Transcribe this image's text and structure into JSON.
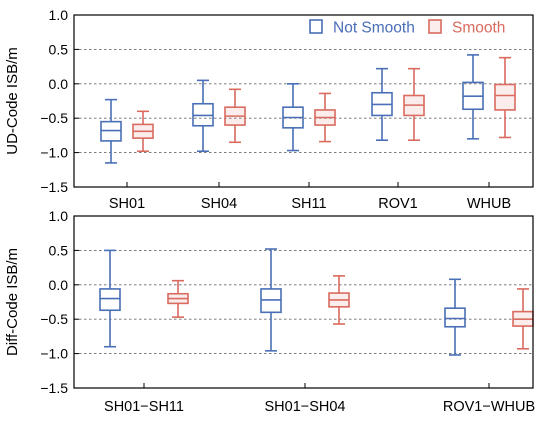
{
  "colors": {
    "not_smooth": "#4a6fb6",
    "smooth": "#d96b5f",
    "grid": "#6a6a6a",
    "axis": "#000000"
  },
  "chart_data": [
    {
      "type": "box",
      "ylabel": "UD-Code ISB/m",
      "ylim": [
        -1.5,
        1.0
      ],
      "yticks": [
        -1.5,
        -1.0,
        -0.5,
        0.0,
        0.5,
        1.0
      ],
      "ytick_labels": [
        "−1.5",
        "−1.0",
        "−0.5",
        "0.0",
        "0.5",
        "1.0"
      ],
      "grid": "dashed horizontal",
      "legend_placement": "top-right",
      "categories": [
        "SH01",
        "SH04",
        "SH11",
        "ROV1",
        "WHUB"
      ],
      "series": [
        {
          "name": "Not Smooth",
          "color_key": "not_smooth",
          "boxes": [
            {
              "whislo": -1.15,
              "q1": -0.83,
              "med": -0.68,
              "q3": -0.55,
              "whishi": -0.23
            },
            {
              "whislo": -0.98,
              "q1": -0.61,
              "med": -0.46,
              "q3": -0.29,
              "whishi": 0.05
            },
            {
              "whislo": -0.97,
              "q1": -0.64,
              "med": -0.49,
              "q3": -0.34,
              "whishi": 0.0
            },
            {
              "whislo": -0.82,
              "q1": -0.46,
              "med": -0.3,
              "q3": -0.13,
              "whishi": 0.22
            },
            {
              "whislo": -0.8,
              "q1": -0.37,
              "med": -0.18,
              "q3": 0.02,
              "whishi": 0.42
            }
          ]
        },
        {
          "name": "Smooth",
          "color_key": "smooth",
          "boxes": [
            {
              "whislo": -0.98,
              "q1": -0.79,
              "med": -0.69,
              "q3": -0.59,
              "whishi": -0.4
            },
            {
              "whislo": -0.85,
              "q1": -0.6,
              "med": -0.47,
              "q3": -0.34,
              "whishi": -0.08
            },
            {
              "whislo": -0.84,
              "q1": -0.6,
              "med": -0.49,
              "q3": -0.38,
              "whishi": -0.14
            },
            {
              "whislo": -0.82,
              "q1": -0.46,
              "med": -0.31,
              "q3": -0.17,
              "whishi": 0.22
            },
            {
              "whislo": -0.78,
              "q1": -0.38,
              "med": -0.17,
              "q3": -0.01,
              "whishi": 0.38
            }
          ]
        }
      ]
    },
    {
      "type": "box",
      "ylabel": "Diff-Code ISB/m",
      "ylim": [
        -1.5,
        1.0
      ],
      "yticks": [
        -1.5,
        -1.0,
        -0.5,
        0.0,
        0.5,
        1.0
      ],
      "ytick_labels": [
        "−1.5",
        "−1.0",
        "−0.5",
        "0.0",
        "0.5",
        "1.0"
      ],
      "grid": "dashed horizontal",
      "categories": [
        "SH01−SH11",
        "SH01−SH04",
        "ROV1−WHUB"
      ],
      "series": [
        {
          "name": "Not Smooth",
          "color_key": "not_smooth",
          "boxes": [
            {
              "whislo": -0.9,
              "q1": -0.37,
              "med": -0.2,
              "q3": -0.06,
              "whishi": 0.5
            },
            {
              "whislo": -0.96,
              "q1": -0.4,
              "med": -0.22,
              "q3": -0.06,
              "whishi": 0.52
            },
            {
              "whislo": -1.02,
              "q1": -0.61,
              "med": -0.49,
              "q3": -0.34,
              "whishi": 0.08
            }
          ]
        },
        {
          "name": "Smooth",
          "color_key": "smooth",
          "boxes": [
            {
              "whislo": -0.47,
              "q1": -0.27,
              "med": -0.2,
              "q3": -0.13,
              "whishi": 0.06
            },
            {
              "whislo": -0.57,
              "q1": -0.32,
              "med": -0.22,
              "q3": -0.12,
              "whishi": 0.13
            },
            {
              "whislo": -0.93,
              "q1": -0.6,
              "med": -0.5,
              "q3": -0.39,
              "whishi": -0.06
            }
          ]
        }
      ]
    }
  ]
}
